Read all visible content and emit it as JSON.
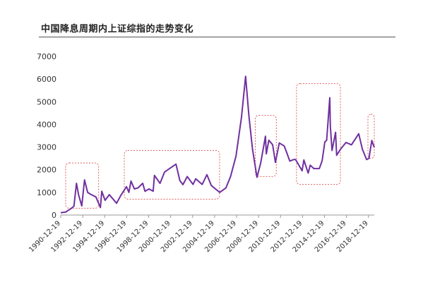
{
  "chart_data": {
    "type": "line",
    "title": "中国降息周期内上证综指的走势变化",
    "xlabel": "",
    "ylabel": "",
    "ylim": [
      0,
      7000
    ],
    "yticks": [
      0,
      1000,
      2000,
      3000,
      4000,
      5000,
      6000,
      7000
    ],
    "grid": false,
    "legend": "none",
    "xlim": [
      "1990-12-19",
      "2019-06-30"
    ],
    "xticks": [
      "1990-12-19",
      "1992-12-19",
      "1994-12-19",
      "1996-12-19",
      "1998-12-19",
      "2000-12-19",
      "2002-12-19",
      "2004-12-19",
      "2006-12-19",
      "2008-12-19",
      "2010-12-19",
      "2012-12-19",
      "2014-12-19",
      "2016-12-19",
      "2018-12-19"
    ],
    "series": [
      {
        "color": "#7030a0",
        "points": [
          [
            "1990-12-19",
            100
          ],
          [
            "1991-06-01",
            130
          ],
          [
            "1991-12-01",
            290
          ],
          [
            "1992-03-01",
            390
          ],
          [
            "1992-05-25",
            1400
          ],
          [
            "1992-08-01",
            900
          ],
          [
            "1992-11-17",
            400
          ],
          [
            "1993-02-16",
            1550
          ],
          [
            "1993-06-01",
            1000
          ],
          [
            "1993-10-01",
            900
          ],
          [
            "1994-03-01",
            800
          ],
          [
            "1994-07-29",
            330
          ],
          [
            "1994-09-13",
            1050
          ],
          [
            "1995-01-01",
            650
          ],
          [
            "1995-05-22",
            900
          ],
          [
            "1996-01-19",
            520
          ],
          [
            "1996-06-01",
            850
          ],
          [
            "1996-12-11",
            1250
          ],
          [
            "1997-03-01",
            1000
          ],
          [
            "1997-05-12",
            1500
          ],
          [
            "1997-09-01",
            1150
          ],
          [
            "1998-01-01",
            1200
          ],
          [
            "1998-06-04",
            1400
          ],
          [
            "1998-08-18",
            1050
          ],
          [
            "1999-01-01",
            1150
          ],
          [
            "1999-05-17",
            1050
          ],
          [
            "1999-06-30",
            1750
          ],
          [
            "2000-01-01",
            1400
          ],
          [
            "2000-06-01",
            1900
          ],
          [
            "2001-06-14",
            2245
          ],
          [
            "2001-10-22",
            1520
          ],
          [
            "2002-01-29",
            1340
          ],
          [
            "2002-06-25",
            1700
          ],
          [
            "2003-01-01",
            1350
          ],
          [
            "2003-04-01",
            1600
          ],
          [
            "2003-11-01",
            1350
          ],
          [
            "2004-04-07",
            1780
          ],
          [
            "2004-09-01",
            1300
          ],
          [
            "2005-06-06",
            998
          ],
          [
            "2006-01-01",
            1200
          ],
          [
            "2006-06-01",
            1700
          ],
          [
            "2006-12-01",
            2600
          ],
          [
            "2007-05-29",
            4300
          ],
          [
            "2007-10-16",
            6124
          ],
          [
            "2008-02-01",
            4400
          ],
          [
            "2008-06-01",
            2900
          ],
          [
            "2008-10-28",
            1664
          ],
          [
            "2009-03-01",
            2300
          ],
          [
            "2009-08-04",
            3478
          ],
          [
            "2009-09-01",
            2700
          ],
          [
            "2009-11-24",
            3300
          ],
          [
            "2010-04-01",
            3100
          ],
          [
            "2010-07-02",
            2320
          ],
          [
            "2010-11-08",
            3180
          ],
          [
            "2011-04-18",
            3050
          ],
          [
            "2011-07-01",
            2800
          ],
          [
            "2011-10-24",
            2380
          ],
          [
            "2012-03-01",
            2450
          ],
          [
            "2012-05-01",
            2450
          ],
          [
            "2012-12-04",
            1950
          ],
          [
            "2013-02-01",
            2430
          ],
          [
            "2013-06-25",
            1850
          ],
          [
            "2013-09-01",
            2200
          ],
          [
            "2014-01-01",
            2050
          ],
          [
            "2014-07-01",
            2050
          ],
          [
            "2014-10-01",
            2400
          ],
          [
            "2014-12-31",
            3230
          ],
          [
            "2015-03-01",
            3300
          ],
          [
            "2015-06-12",
            5178
          ],
          [
            "2015-07-01",
            3900
          ],
          [
            "2015-08-26",
            2850
          ],
          [
            "2015-12-22",
            3650
          ],
          [
            "2016-01-27",
            2638
          ],
          [
            "2016-06-01",
            2900
          ],
          [
            "2016-12-01",
            3200
          ],
          [
            "2017-06-01",
            3100
          ],
          [
            "2018-01-29",
            3587
          ],
          [
            "2018-06-01",
            2900
          ],
          [
            "2018-10-18",
            2449
          ],
          [
            "2019-01-04",
            2500
          ],
          [
            "2019-04-08",
            3288
          ],
          [
            "2019-06-30",
            2980
          ]
        ]
      }
    ],
    "highlight_boxes": [
      {
        "x_start": "1991-06-01",
        "x_end": "1994-06-01",
        "y_low": 300,
        "y_high": 2300
      },
      {
        "x_start": "1996-10-01",
        "x_end": "2005-06-01",
        "y_low": 700,
        "y_high": 2850
      },
      {
        "x_start": "2008-09-01",
        "x_end": "2010-08-01",
        "y_low": 1700,
        "y_high": 4400
      },
      {
        "x_start": "2012-06-01",
        "x_end": "2016-06-01",
        "y_low": 1350,
        "y_high": 5800
      },
      {
        "x_start": "2018-12-01",
        "x_end": "2019-06-30",
        "y_low": 2500,
        "y_high": 4450
      }
    ],
    "highlight_color": "#e06060"
  }
}
